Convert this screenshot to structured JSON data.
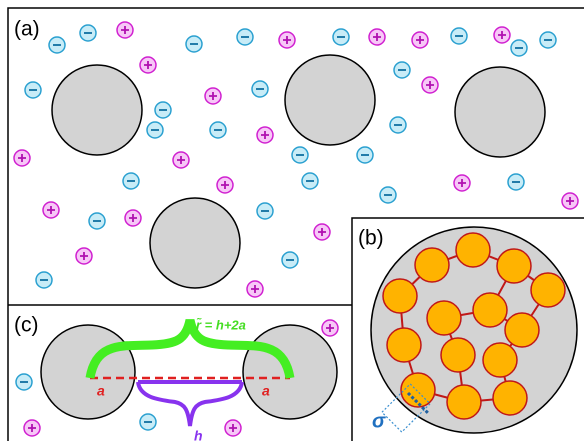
{
  "panels": [
    {
      "label": "(a)"
    },
    {
      "label": "(b)"
    },
    {
      "label": "(c)"
    }
  ],
  "annotations": {
    "r_tilde": "r̃ = h+2a",
    "a_left": "a",
    "a_right": "a",
    "h": "h",
    "sigma": "σ"
  }
}
